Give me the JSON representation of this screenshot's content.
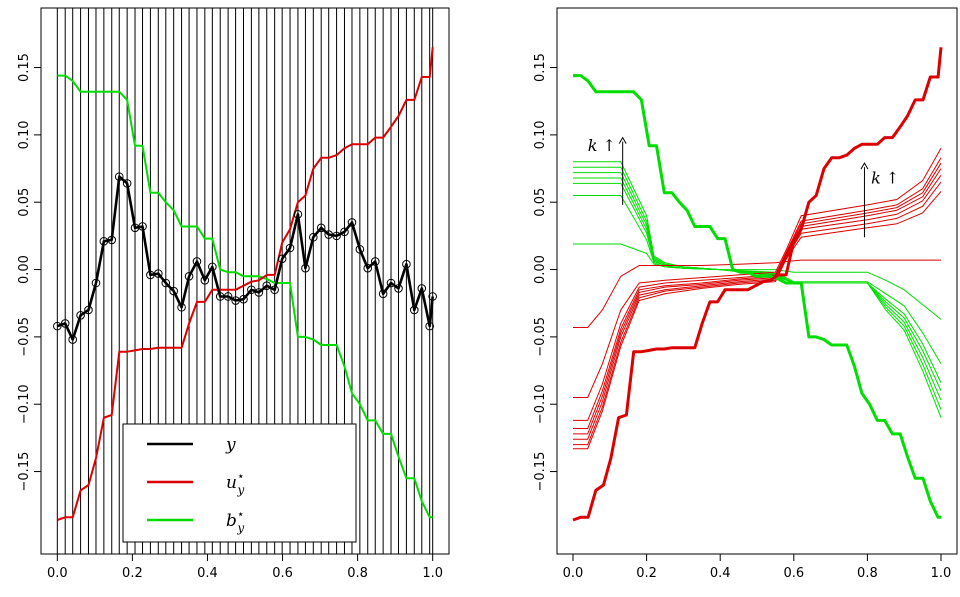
{
  "colors": {
    "y": "#000000",
    "upper": "#dd0000",
    "lower": "#00dd00",
    "grid": "#000000"
  },
  "chart_data": [
    {
      "type": "line",
      "panel": "left",
      "xlim": [
        0,
        1
      ],
      "ylim": [
        -0.195,
        0.178
      ],
      "xticks": [
        0.0,
        0.2,
        0.4,
        0.6,
        0.8,
        1.0
      ],
      "xtick_labels": [
        "0.0",
        "0.2",
        "0.4",
        "0.6",
        "0.8",
        "1.0"
      ],
      "yticks": [
        -0.15,
        -0.1,
        -0.05,
        0.0,
        0.05,
        0.1,
        0.15
      ],
      "ytick_labels": [
        "−0.15",
        "−0.10",
        "−0.05",
        "0.00",
        "0.05",
        "0.10",
        "0.15"
      ],
      "vertical_lines_at_data_x": true,
      "legend": {
        "position": "bottom-center",
        "entries": [
          {
            "key": "y",
            "label": "y",
            "sub": "",
            "sup": "",
            "color": "#000000"
          },
          {
            "key": "upper",
            "label": "u",
            "sub": "y",
            "sup": "⋆",
            "color": "#dd0000"
          },
          {
            "key": "lower",
            "label": "b",
            "sub": "y",
            "sup": "⋆",
            "color": "#00dd00"
          }
        ]
      },
      "x": [
        0.0,
        0.021,
        0.041,
        0.062,
        0.083,
        0.103,
        0.124,
        0.145,
        0.165,
        0.186,
        0.207,
        0.227,
        0.248,
        0.269,
        0.289,
        0.31,
        0.331,
        0.351,
        0.372,
        0.393,
        0.413,
        0.434,
        0.455,
        0.475,
        0.496,
        0.517,
        0.537,
        0.558,
        0.579,
        0.599,
        0.62,
        0.641,
        0.661,
        0.682,
        0.703,
        0.723,
        0.744,
        0.765,
        0.785,
        0.806,
        0.827,
        0.847,
        0.868,
        0.889,
        0.909,
        0.93,
        0.951,
        0.971,
        0.992,
        1.0
      ],
      "series": [
        {
          "key": "y",
          "markers": true,
          "values": [
            -0.042,
            -0.04,
            -0.052,
            -0.034,
            -0.03,
            -0.01,
            0.021,
            0.022,
            0.069,
            0.064,
            0.031,
            0.032,
            -0.004,
            -0.003,
            -0.01,
            -0.016,
            -0.028,
            -0.005,
            0.006,
            -0.008,
            0.002,
            -0.02,
            -0.02,
            -0.023,
            -0.022,
            -0.015,
            -0.017,
            -0.012,
            -0.015,
            0.008,
            0.016,
            0.041,
            0.001,
            0.024,
            0.031,
            0.026,
            0.025,
            0.028,
            0.035,
            0.015,
            0.001,
            0.006,
            -0.018,
            -0.01,
            -0.014,
            0.004,
            -0.03,
            -0.014,
            -0.042,
            -0.02
          ]
        },
        {
          "key": "upper",
          "markers": false,
          "values": [
            -0.186,
            -0.184,
            -0.184,
            -0.164,
            -0.16,
            -0.14,
            -0.11,
            -0.108,
            -0.061,
            -0.061,
            -0.06,
            -0.059,
            -0.059,
            -0.058,
            -0.058,
            -0.058,
            -0.058,
            -0.04,
            -0.024,
            -0.024,
            -0.015,
            -0.015,
            -0.015,
            -0.015,
            -0.012,
            -0.009,
            -0.008,
            -0.004,
            -0.004,
            0.02,
            0.03,
            0.05,
            0.055,
            0.075,
            0.083,
            0.083,
            0.085,
            0.09,
            0.093,
            0.093,
            0.093,
            0.098,
            0.098,
            0.106,
            0.114,
            0.126,
            0.126,
            0.143,
            0.143,
            0.165
          ]
        },
        {
          "key": "lower",
          "markers": false,
          "values": [
            0.144,
            0.144,
            0.14,
            0.132,
            0.132,
            0.132,
            0.132,
            0.132,
            0.132,
            0.126,
            0.092,
            0.092,
            0.057,
            0.057,
            0.05,
            0.044,
            0.032,
            0.032,
            0.032,
            0.023,
            0.023,
            0.0,
            -0.002,
            -0.002,
            -0.005,
            -0.005,
            -0.005,
            -0.007,
            -0.01,
            -0.01,
            -0.01,
            -0.05,
            -0.05,
            -0.052,
            -0.056,
            -0.056,
            -0.056,
            -0.072,
            -0.092,
            -0.1,
            -0.112,
            -0.112,
            -0.122,
            -0.122,
            -0.139,
            -0.155,
            -0.155,
            -0.172,
            -0.184,
            -0.184
          ]
        }
      ]
    },
    {
      "type": "line",
      "panel": "right",
      "xlim": [
        0,
        1
      ],
      "ylim": [
        -0.195,
        0.178
      ],
      "xticks": [
        0.0,
        0.2,
        0.4,
        0.6,
        0.8,
        1.0
      ],
      "xtick_labels": [
        "0.0",
        "0.2",
        "0.4",
        "0.6",
        "0.8",
        "1.0"
      ],
      "yticks": [
        -0.15,
        -0.1,
        -0.05,
        0.0,
        0.05,
        0.1,
        0.15
      ],
      "ytick_labels": [
        "−0.15",
        "−0.10",
        "−0.05",
        "0.00",
        "0.05",
        "0.10",
        "0.15"
      ],
      "annotations": [
        {
          "text": "k ↑",
          "near": "upper-left, above green bands"
        },
        {
          "text": "k ↑",
          "near": "upper-right, above red bands"
        }
      ],
      "thick_upper": {
        "x": [
          0.0,
          0.021,
          0.041,
          0.062,
          0.083,
          0.103,
          0.124,
          0.145,
          0.165,
          0.186,
          0.207,
          0.227,
          0.248,
          0.269,
          0.289,
          0.31,
          0.331,
          0.351,
          0.372,
          0.393,
          0.413,
          0.434,
          0.455,
          0.475,
          0.496,
          0.517,
          0.537,
          0.558,
          0.579,
          0.599,
          0.62,
          0.641,
          0.661,
          0.682,
          0.703,
          0.723,
          0.744,
          0.765,
          0.785,
          0.806,
          0.827,
          0.847,
          0.868,
          0.889,
          0.909,
          0.93,
          0.951,
          0.971,
          0.992,
          1.0
        ],
        "values": [
          -0.186,
          -0.184,
          -0.184,
          -0.164,
          -0.16,
          -0.14,
          -0.11,
          -0.108,
          -0.061,
          -0.061,
          -0.06,
          -0.059,
          -0.059,
          -0.058,
          -0.058,
          -0.058,
          -0.058,
          -0.04,
          -0.024,
          -0.024,
          -0.015,
          -0.015,
          -0.015,
          -0.015,
          -0.012,
          -0.009,
          -0.008,
          -0.004,
          -0.004,
          0.02,
          0.03,
          0.05,
          0.055,
          0.075,
          0.083,
          0.083,
          0.085,
          0.09,
          0.093,
          0.093,
          0.093,
          0.098,
          0.098,
          0.106,
          0.114,
          0.126,
          0.126,
          0.143,
          0.143,
          0.165
        ]
      },
      "thick_lower": {
        "x": [
          0.0,
          0.021,
          0.041,
          0.062,
          0.083,
          0.103,
          0.124,
          0.145,
          0.165,
          0.186,
          0.207,
          0.227,
          0.248,
          0.269,
          0.289,
          0.31,
          0.331,
          0.351,
          0.372,
          0.393,
          0.413,
          0.434,
          0.455,
          0.475,
          0.496,
          0.517,
          0.537,
          0.558,
          0.579,
          0.599,
          0.62,
          0.641,
          0.661,
          0.682,
          0.703,
          0.723,
          0.744,
          0.765,
          0.785,
          0.806,
          0.827,
          0.847,
          0.868,
          0.889,
          0.909,
          0.93,
          0.951,
          0.971,
          0.992,
          1.0
        ],
        "values": [
          0.144,
          0.144,
          0.14,
          0.132,
          0.132,
          0.132,
          0.132,
          0.132,
          0.132,
          0.126,
          0.092,
          0.092,
          0.057,
          0.057,
          0.05,
          0.044,
          0.032,
          0.032,
          0.032,
          0.023,
          0.023,
          0.0,
          -0.002,
          -0.002,
          -0.005,
          -0.005,
          -0.005,
          -0.007,
          -0.01,
          -0.01,
          -0.01,
          -0.05,
          -0.05,
          -0.052,
          -0.056,
          -0.056,
          -0.056,
          -0.072,
          -0.092,
          -0.1,
          -0.112,
          -0.112,
          -0.122,
          -0.122,
          -0.139,
          -0.155,
          -0.155,
          -0.172,
          -0.184,
          -0.184
        ]
      },
      "thin_lower": {
        "x": [
          0.0,
          0.04,
          0.13,
          0.2,
          0.22,
          0.25,
          0.3,
          0.4,
          0.55,
          0.6,
          0.8,
          0.85,
          0.9,
          0.95,
          1.0
        ],
        "series": [
          {
            "values": [
              0.08,
              0.08,
              0.08,
              0.04,
              0.01,
              0.005,
              0.002,
              0.0,
              -0.005,
              -0.01,
              -0.01,
              -0.03,
              -0.045,
              -0.075,
              -0.11
            ]
          },
          {
            "values": [
              0.076,
              0.076,
              0.076,
              0.036,
              0.009,
              0.004,
              0.002,
              0.0,
              -0.004,
              -0.01,
              -0.01,
              -0.028,
              -0.042,
              -0.07,
              -0.104
            ]
          },
          {
            "values": [
              0.072,
              0.072,
              0.072,
              0.033,
              0.008,
              0.004,
              0.002,
              0.0,
              -0.004,
              -0.01,
              -0.01,
              -0.026,
              -0.039,
              -0.065,
              -0.097
            ]
          },
          {
            "values": [
              0.068,
              0.068,
              0.068,
              0.03,
              0.007,
              0.003,
              0.001,
              0.0,
              -0.003,
              -0.01,
              -0.01,
              -0.024,
              -0.036,
              -0.06,
              -0.09
            ]
          },
          {
            "values": [
              0.064,
              0.064,
              0.064,
              0.027,
              0.006,
              0.003,
              0.001,
              0.0,
              -0.003,
              -0.01,
              -0.01,
              -0.022,
              -0.033,
              -0.055,
              -0.084
            ]
          },
          {
            "values": [
              0.055,
              0.055,
              0.055,
              0.022,
              0.005,
              0.002,
              0.001,
              0.0,
              -0.002,
              -0.009,
              -0.009,
              -0.018,
              -0.027,
              -0.047,
              -0.07
            ]
          },
          {
            "values": [
              0.019,
              0.019,
              0.019,
              0.012,
              0.004,
              0.002,
              0.001,
              0.0,
              0.0,
              -0.002,
              -0.002,
              -0.008,
              -0.015,
              -0.026,
              -0.037
            ]
          }
        ]
      },
      "thin_upper": {
        "x": [
          0.0,
          0.04,
          0.08,
          0.13,
          0.18,
          0.25,
          0.35,
          0.45,
          0.55,
          0.58,
          0.62,
          0.8,
          0.88,
          0.95,
          1.0
        ],
        "series": [
          {
            "values": [
              -0.095,
              -0.095,
              -0.07,
              -0.03,
              -0.01,
              -0.008,
              -0.006,
              -0.004,
              -0.002,
              0.015,
              0.04,
              0.048,
              0.052,
              0.066,
              0.09
            ]
          },
          {
            "values": [
              -0.112,
              -0.112,
              -0.085,
              -0.04,
              -0.013,
              -0.01,
              -0.008,
              -0.006,
              -0.004,
              0.013,
              0.036,
              0.044,
              0.048,
              0.06,
              0.083
            ]
          },
          {
            "values": [
              -0.118,
              -0.118,
              -0.09,
              -0.044,
              -0.015,
              -0.012,
              -0.01,
              -0.007,
              -0.005,
              0.012,
              0.034,
              0.042,
              0.046,
              0.057,
              0.079
            ]
          },
          {
            "values": [
              -0.122,
              -0.122,
              -0.094,
              -0.047,
              -0.017,
              -0.013,
              -0.011,
              -0.008,
              -0.006,
              0.011,
              0.032,
              0.04,
              0.044,
              0.054,
              0.075
            ]
          },
          {
            "values": [
              -0.126,
              -0.126,
              -0.098,
              -0.05,
              -0.019,
              -0.015,
              -0.012,
              -0.009,
              -0.007,
              0.01,
              0.03,
              0.037,
              0.041,
              0.051,
              0.07
            ]
          },
          {
            "values": [
              -0.13,
              -0.13,
              -0.102,
              -0.054,
              -0.021,
              -0.016,
              -0.013,
              -0.01,
              -0.008,
              0.009,
              0.027,
              0.034,
              0.038,
              0.047,
              0.065
            ]
          },
          {
            "values": [
              -0.133,
              -0.133,
              -0.105,
              -0.057,
              -0.023,
              -0.018,
              -0.014,
              -0.011,
              -0.009,
              0.008,
              0.024,
              0.031,
              0.034,
              0.042,
              0.058
            ]
          },
          {
            "values": [
              -0.043,
              -0.043,
              -0.03,
              -0.005,
              0.003,
              0.003,
              0.003,
              0.004,
              0.005,
              0.006,
              0.007,
              0.007,
              0.007,
              0.007,
              0.007
            ]
          }
        ]
      }
    }
  ]
}
